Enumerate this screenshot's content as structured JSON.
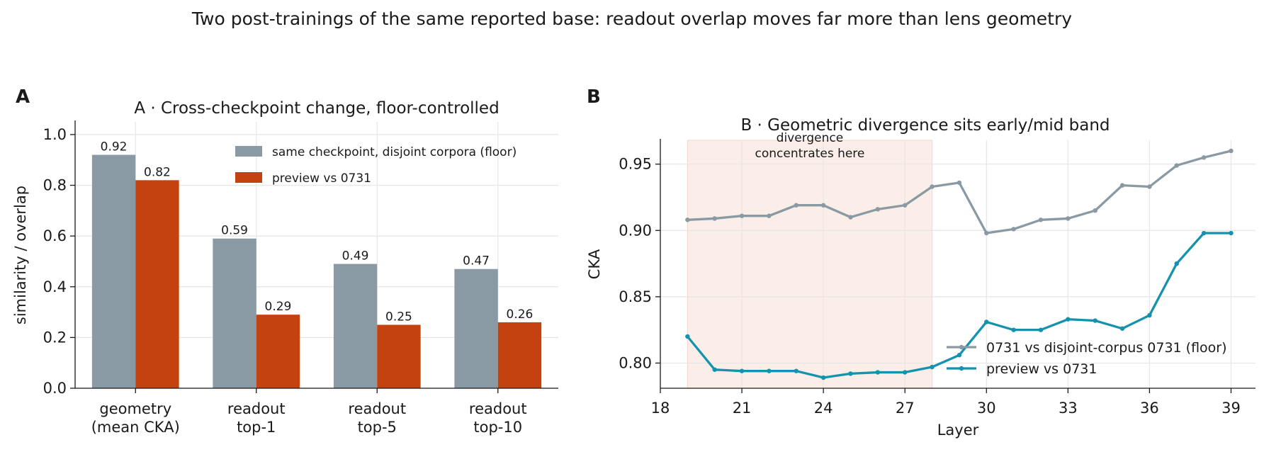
{
  "suptitle": "Two post-trainings of the same reported base: readout overlap moves far more than lens geometry",
  "panels": {
    "a_letter": "A",
    "b_letter": "B"
  },
  "colors": {
    "floor": "#8a9aa5",
    "preview_bar": "#c4420f",
    "preview_line": "#1592ad",
    "band": "#fbeee8",
    "annotation": "#c4420f",
    "grid": "#e6e6e6"
  },
  "chart_data": [
    {
      "type": "bar",
      "title": "A · Cross-checkpoint change, floor-controlled",
      "ylabel": "similarity / overlap",
      "xlabel": "",
      "ylim": [
        0,
        1.05
      ],
      "yticks": [
        "0.0",
        "0.2",
        "0.4",
        "0.6",
        "0.8",
        "1.0"
      ],
      "grid": true,
      "legend_position": "top-right",
      "categories": [
        [
          "geometry",
          "(mean CKA)"
        ],
        [
          "readout",
          "top-1"
        ],
        [
          "readout",
          "top-5"
        ],
        [
          "readout",
          "top-10"
        ]
      ],
      "series": [
        {
          "name": "same checkpoint, disjoint corpora (floor)",
          "values": [
            0.92,
            0.59,
            0.49,
            0.47
          ],
          "labels": [
            "0.92",
            "0.59",
            "0.49",
            "0.47"
          ]
        },
        {
          "name": "preview vs 0731",
          "values": [
            0.82,
            0.29,
            0.25,
            0.26
          ],
          "labels": [
            "0.82",
            "0.29",
            "0.25",
            "0.26"
          ]
        }
      ]
    },
    {
      "type": "line",
      "title": "B · Geometric divergence sits early/mid band",
      "xlabel": "Layer",
      "ylabel": "CKA",
      "xlim": [
        18,
        39.9
      ],
      "ylim": [
        0.781,
        0.968
      ],
      "xticks": [
        "18",
        "21",
        "24",
        "27",
        "30",
        "33",
        "36",
        "39"
      ],
      "yticks": [
        "0.80",
        "0.85",
        "0.90",
        "0.95"
      ],
      "grid": true,
      "legend_position": "bottom-right",
      "band": {
        "x": [
          19,
          28
        ],
        "label_lines": [
          "divergence",
          "concentrates here"
        ]
      },
      "x": [
        19,
        20,
        21,
        22,
        23,
        24,
        25,
        26,
        27,
        28,
        29,
        30,
        31,
        32,
        33,
        34,
        35,
        36,
        37,
        38,
        39
      ],
      "series": [
        {
          "name": "0731 vs disjoint-corpus 0731 (floor)",
          "values": [
            0.908,
            0.909,
            0.911,
            0.911,
            0.919,
            0.919,
            0.91,
            0.916,
            0.919,
            0.933,
            0.936,
            0.898,
            0.901,
            0.908,
            0.909,
            0.915,
            0.934,
            0.933,
            0.949,
            0.955,
            0.96
          ]
        },
        {
          "name": "preview vs 0731",
          "values": [
            0.82,
            0.795,
            0.794,
            0.794,
            0.794,
            0.789,
            0.792,
            0.793,
            0.793,
            0.797,
            0.806,
            0.831,
            0.825,
            0.825,
            0.833,
            0.832,
            0.826,
            0.836,
            0.875,
            0.898,
            0.898
          ]
        }
      ]
    }
  ]
}
